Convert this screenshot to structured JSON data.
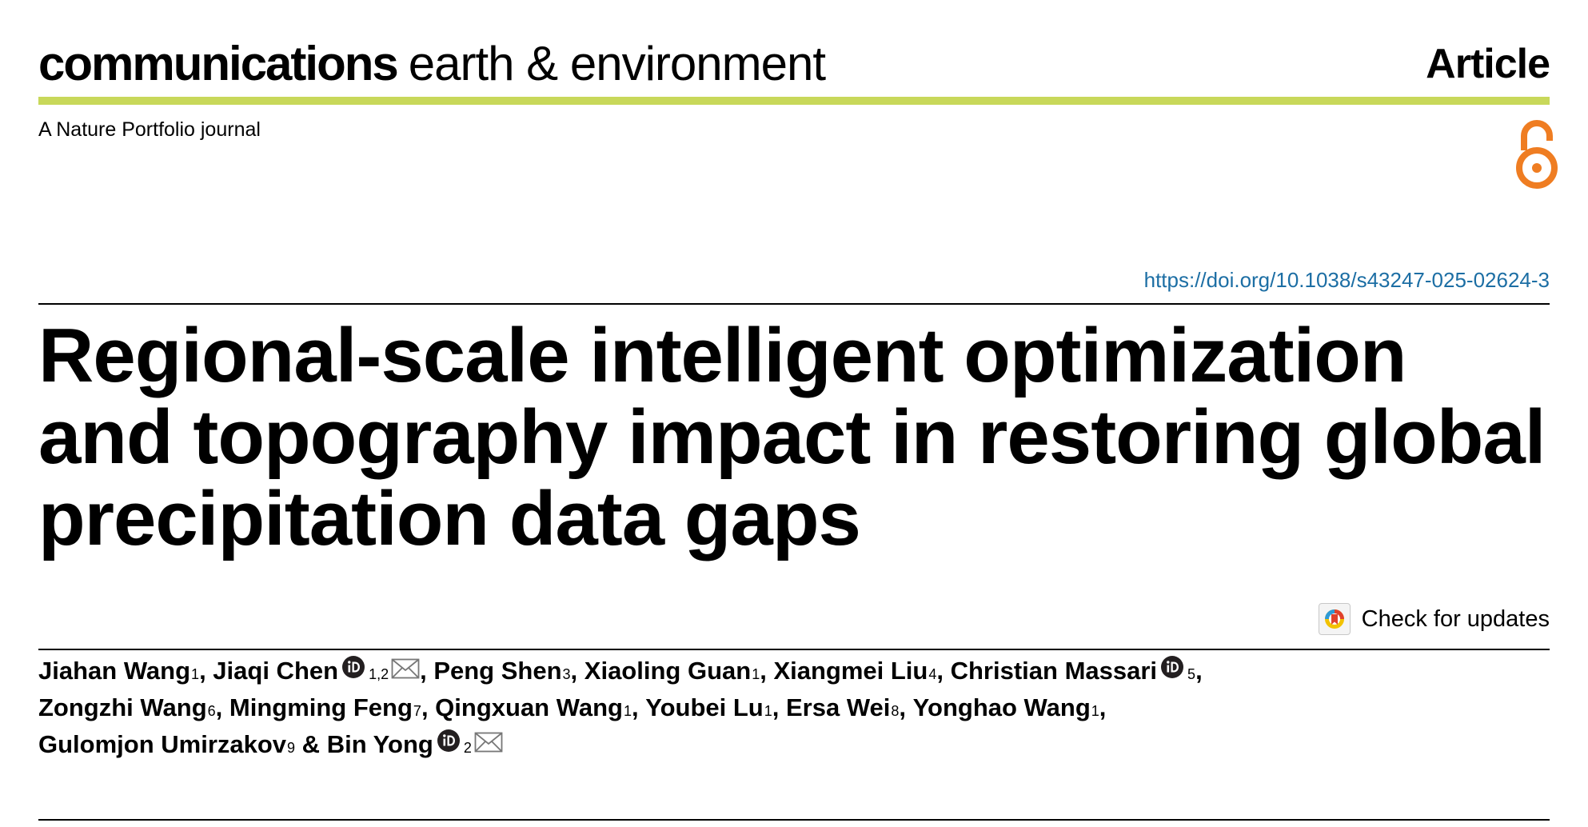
{
  "header": {
    "journal_bold": "communications",
    "journal_light": "earth & environment",
    "article_type": "Article",
    "portfolio": "A Nature Portfolio journal",
    "accent_color": "#c8d85a",
    "open_access_icon": "open-access-icon",
    "open_access_color": "#ef7d22"
  },
  "doi": "https://doi.org/10.1038/s43247-025-02624-3",
  "title": {
    "lines": [
      "Regional-scale intelligent optimization",
      "and topography impact in restoring global",
      "precipitation data gaps"
    ]
  },
  "check_updates": {
    "label": "Check for updates",
    "icon": "check-for-updates-icon"
  },
  "authors": {
    "lines": [
      [
        {
          "name": "Jiahan Wang",
          "sup": "1",
          "orcid": false,
          "email": false,
          "sep": ", "
        },
        {
          "name": "Jiaqi Chen",
          "sup": "1,2",
          "orcid": true,
          "email": true,
          "sep": ", "
        },
        {
          "name": "Peng Shen",
          "sup": "3",
          "orcid": false,
          "email": false,
          "sep": ", "
        },
        {
          "name": "Xiaoling Guan",
          "sup": "1",
          "orcid": false,
          "email": false,
          "sep": ", "
        },
        {
          "name": "Xiangmei Liu",
          "sup": "4",
          "orcid": false,
          "email": false,
          "sep": ", "
        },
        {
          "name": "Christian Massari",
          "sup": "5",
          "orcid": true,
          "email": false,
          "sep": ","
        }
      ],
      [
        {
          "name": "Zongzhi Wang",
          "sup": "6",
          "orcid": false,
          "email": false,
          "sep": ", "
        },
        {
          "name": "Mingming Feng",
          "sup": "7",
          "orcid": false,
          "email": false,
          "sep": ", "
        },
        {
          "name": "Qingxuan Wang",
          "sup": "1",
          "orcid": false,
          "email": false,
          "sep": ", "
        },
        {
          "name": "Youbei Lu",
          "sup": "1",
          "orcid": false,
          "email": false,
          "sep": ", "
        },
        {
          "name": "Ersa Wei",
          "sup": "8",
          "orcid": false,
          "email": false,
          "sep": ", "
        },
        {
          "name": "Yonghao Wang",
          "sup": "1",
          "orcid": false,
          "email": false,
          "sep": ","
        }
      ],
      [
        {
          "name": "Gulomjon Umirzakov",
          "sup": "9",
          "orcid": false,
          "email": false,
          "sep": " & "
        },
        {
          "name": "Bin Yong",
          "sup": "2",
          "orcid": true,
          "email": true,
          "sep": ""
        }
      ]
    ]
  }
}
